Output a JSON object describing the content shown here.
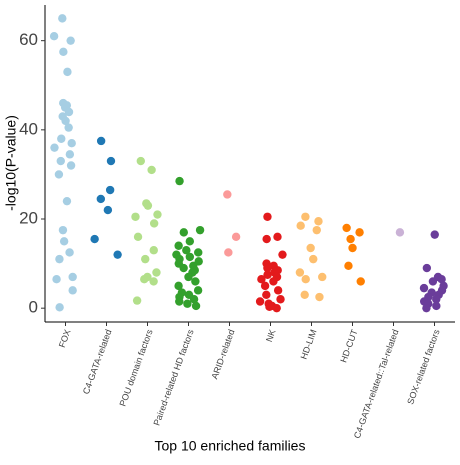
{
  "chart_data": {
    "type": "strip",
    "x_label": "Top 10 enriched families",
    "y_label": "-log10(P-value)",
    "categories": [
      "FOX",
      "C4-GATA-related",
      "POU domain factors",
      "Paired-related HD factors",
      "ARID-related",
      "NK",
      "HD-LIM",
      "HD-CUT",
      "C4-GATA-related::Tal-related",
      "SOX-related factors"
    ],
    "colors": [
      "#a6cee3",
      "#1f78b4",
      "#b2df8a",
      "#33a02c",
      "#fb9a99",
      "#e31a1c",
      "#fdbf6f",
      "#ff7f00",
      "#cab2d6",
      "#6a3d9a"
    ],
    "values": [
      [
        65,
        61,
        60,
        57.5,
        53,
        46,
        45.5,
        45,
        44,
        43,
        42,
        40.5,
        38,
        37,
        36,
        34.5,
        33,
        32,
        30,
        24,
        17.5,
        15,
        12.5,
        11,
        7,
        6.5,
        4,
        0.2
      ],
      [
        37.5,
        33,
        26.5,
        24.5,
        22,
        15.5,
        12
      ],
      [
        33,
        31,
        23.5,
        23,
        21,
        20.5,
        19,
        16,
        13,
        11,
        8,
        7,
        6,
        6.5,
        1.7
      ],
      [
        28.5,
        17.5,
        17,
        15,
        14,
        13,
        12.5,
        12,
        11.5,
        11,
        10.5,
        10,
        9.5,
        9,
        8.5,
        8,
        7,
        6,
        5,
        4,
        3.5,
        3,
        2.5,
        2,
        1.5,
        1,
        0.5
      ],
      [
        25.5,
        16,
        12.5
      ],
      [
        20.5,
        16,
        15.5,
        12,
        10,
        9.5,
        9,
        8.5,
        8,
        7.5,
        7,
        6.5,
        6,
        5,
        4,
        3,
        2,
        1.5,
        1,
        0.5,
        0.3,
        0
      ],
      [
        20.5,
        19.5,
        18.5,
        17.5,
        13.5,
        11,
        8,
        7,
        6.5,
        3,
        2.5
      ],
      [
        18,
        17,
        15.5,
        13.5,
        9.5,
        6
      ],
      [
        17
      ],
      [
        16.5,
        9,
        7,
        6.5,
        6,
        5,
        4.5,
        4,
        3.5,
        3,
        2.5,
        2,
        1.5,
        1,
        0.5,
        0
      ]
    ],
    "ylim": [
      -3.1,
      68
    ],
    "yticks": [
      0,
      20,
      40,
      60
    ],
    "grid": false
  }
}
